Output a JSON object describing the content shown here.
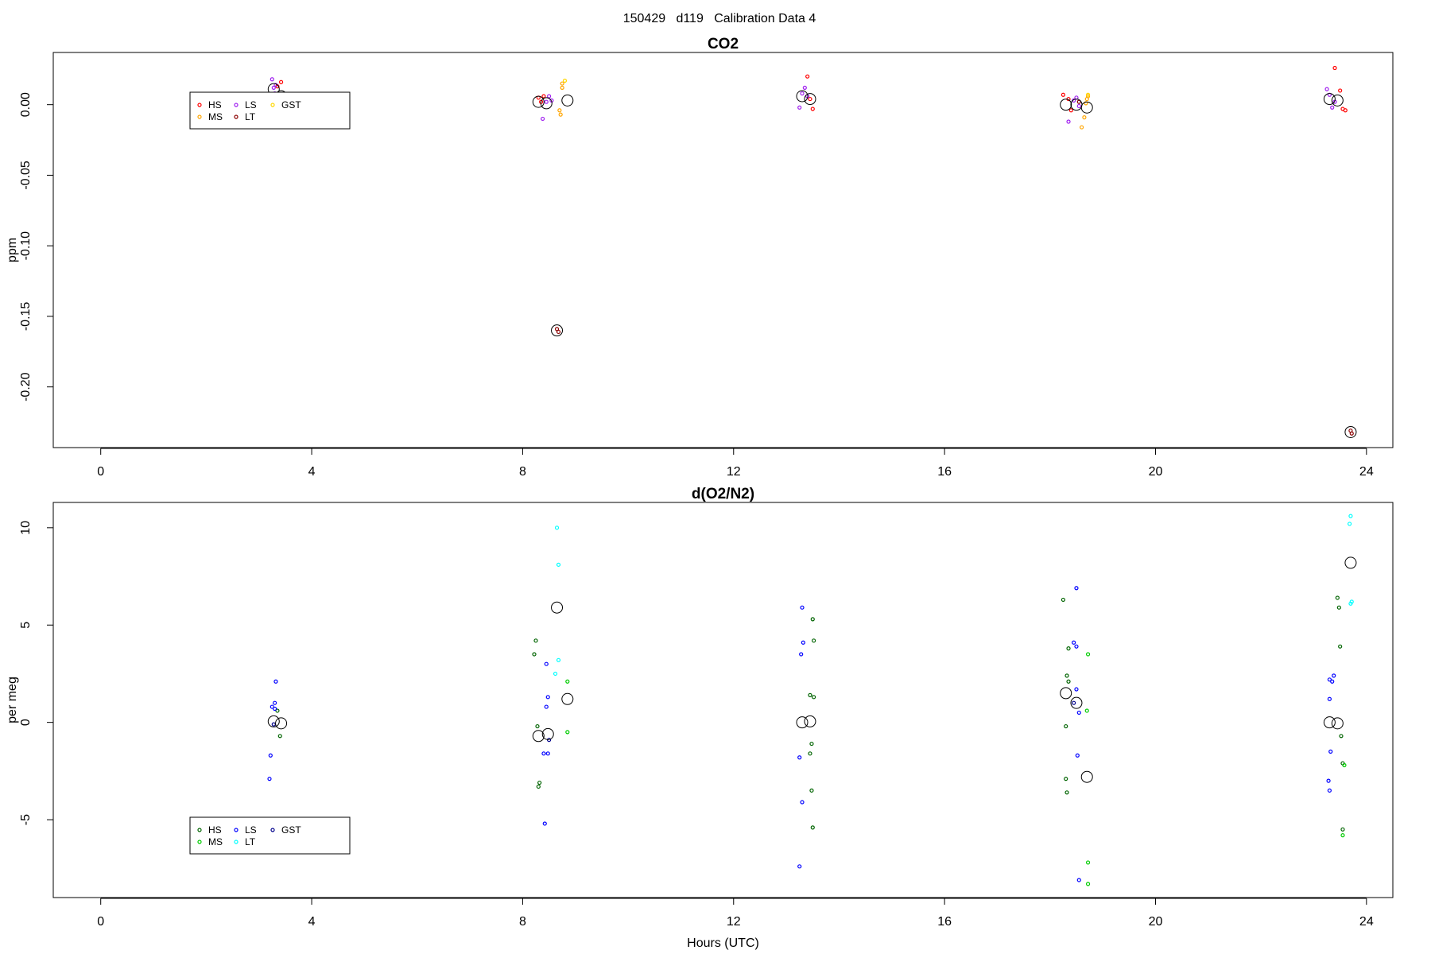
{
  "figure_title": "150429   d119   Calibration Data 4",
  "chart_data": [
    {
      "type": "scatter",
      "title": "CO2",
      "xlabel": "",
      "ylabel": "ppm",
      "xlim": [
        -0.9,
        24.5
      ],
      "ylim": [
        -0.243,
        0.037
      ],
      "x_ticks": [
        0,
        4,
        8,
        12,
        16,
        20,
        24
      ],
      "y_ticks": [
        0.0,
        -0.05,
        -0.1,
        -0.15,
        -0.2
      ],
      "y_tick_labels": [
        "0.00",
        "-0.05",
        "-0.10",
        "-0.15",
        "-0.20"
      ],
      "grid": false,
      "legend": {
        "placement": "top-left",
        "items": [
          {
            "label": "HS",
            "color": "#ff0000"
          },
          {
            "label": "MS",
            "color": "#ffa500"
          },
          {
            "label": "LS",
            "color": "#a020f0"
          },
          {
            "label": "LT",
            "color": "#8b0000"
          },
          {
            "label": "GST",
            "color": "#ffd700"
          }
        ]
      },
      "series": [
        {
          "name": "HS",
          "color": "#ff0000",
          "points": [
            [
              3.35,
              0.013
            ],
            [
              3.42,
              0.016
            ],
            [
              8.3,
              0.005
            ],
            [
              8.35,
              0.002
            ],
            [
              8.4,
              0.006
            ],
            [
              13.4,
              0.02
            ],
            [
              13.45,
              0.004
            ],
            [
              13.5,
              -0.003
            ],
            [
              18.25,
              0.007
            ],
            [
              18.35,
              0.004
            ],
            [
              18.4,
              -0.004
            ],
            [
              23.4,
              0.026
            ],
            [
              23.5,
              0.01
            ],
            [
              23.55,
              -0.003
            ],
            [
              23.6,
              -0.004
            ]
          ]
        },
        {
          "name": "MS",
          "color": "#ffa500",
          "points": [
            [
              8.75,
              0.015
            ],
            [
              8.75,
              0.012
            ],
            [
              8.7,
              -0.004
            ],
            [
              8.72,
              -0.007
            ],
            [
              18.6,
              -0.016
            ],
            [
              18.65,
              -0.009
            ],
            [
              18.7,
              0.004
            ],
            [
              18.72,
              0.006
            ],
            [
              18.68,
              0.001
            ]
          ]
        },
        {
          "name": "LS",
          "color": "#a020f0",
          "points": [
            [
              3.25,
              0.018
            ],
            [
              3.28,
              0.012
            ],
            [
              3.3,
              0.008
            ],
            [
              3.32,
              0.014
            ],
            [
              8.38,
              -0.01
            ],
            [
              8.45,
              0.002
            ],
            [
              8.5,
              0.006
            ],
            [
              8.55,
              0.003
            ],
            [
              13.25,
              -0.002
            ],
            [
              13.3,
              0.008
            ],
            [
              13.35,
              0.012
            ],
            [
              13.4,
              0.006
            ],
            [
              18.35,
              -0.012
            ],
            [
              18.45,
              0.003
            ],
            [
              18.5,
              0.005
            ],
            [
              18.55,
              -0.001
            ],
            [
              23.25,
              0.011
            ],
            [
              23.3,
              0.007
            ],
            [
              23.35,
              -0.002
            ],
            [
              23.4,
              0.002
            ]
          ]
        },
        {
          "name": "LT",
          "color": "#8b0000",
          "points": [
            [
              8.65,
              -0.159
            ],
            [
              8.68,
              -0.161
            ],
            [
              18.55,
              0.002
            ],
            [
              23.7,
              -0.231
            ],
            [
              23.72,
              -0.233
            ]
          ]
        },
        {
          "name": "GST",
          "color": "#ffd700",
          "points": [
            [
              8.8,
              0.017
            ],
            [
              18.72,
              0.007
            ]
          ]
        },
        {
          "name": "",
          "color": "#000000",
          "marker": "open-circle-large",
          "points": [
            [
              3.28,
              0.011
            ],
            [
              3.42,
              0.006
            ],
            [
              8.3,
              0.002
            ],
            [
              8.45,
              0.001
            ],
            [
              8.65,
              -0.16
            ],
            [
              8.85,
              0.003
            ],
            [
              13.3,
              0.006
            ],
            [
              13.45,
              0.004
            ],
            [
              18.3,
              0.0
            ],
            [
              18.5,
              0.0
            ],
            [
              18.7,
              -0.002
            ],
            [
              23.3,
              0.004
            ],
            [
              23.45,
              0.003
            ],
            [
              23.7,
              -0.232
            ]
          ]
        }
      ]
    },
    {
      "type": "scatter",
      "title": "d(O2/N2)",
      "xlabel": "Hours (UTC)",
      "ylabel": "per meg",
      "xlim": [
        -0.9,
        24.5
      ],
      "ylim": [
        -9.0,
        11.3
      ],
      "x_ticks": [
        0,
        4,
        8,
        12,
        16,
        20,
        24
      ],
      "y_ticks": [
        10,
        5,
        0,
        -5
      ],
      "y_tick_labels": [
        "10",
        "5",
        "0",
        "-5"
      ],
      "grid": false,
      "legend": {
        "placement": "bottom-left",
        "items": [
          {
            "label": "HS",
            "color": "#006400"
          },
          {
            "label": "MS",
            "color": "#00cc00"
          },
          {
            "label": "LS",
            "color": "#0000ff"
          },
          {
            "label": "LT",
            "color": "#00ffff"
          },
          {
            "label": "GST",
            "color": "#00008b"
          }
        ]
      },
      "series": [
        {
          "name": "HS",
          "color": "#006400",
          "points": [
            [
              3.35,
              0.6
            ],
            [
              3.4,
              -0.7
            ],
            [
              8.25,
              4.2
            ],
            [
              8.22,
              3.5
            ],
            [
              8.28,
              -0.2
            ],
            [
              8.3,
              -3.3
            ],
            [
              8.32,
              -3.1
            ],
            [
              13.5,
              5.3
            ],
            [
              13.52,
              4.2
            ],
            [
              13.45,
              1.4
            ],
            [
              13.52,
              1.3
            ],
            [
              13.48,
              -1.1
            ],
            [
              13.45,
              -1.6
            ],
            [
              13.48,
              -3.5
            ],
            [
              13.5,
              -5.4
            ],
            [
              18.25,
              6.3
            ],
            [
              18.35,
              3.8
            ],
            [
              18.32,
              2.4
            ],
            [
              18.35,
              2.1
            ],
            [
              18.3,
              -0.2
            ],
            [
              18.3,
              -2.9
            ],
            [
              18.32,
              -3.6
            ],
            [
              23.45,
              6.4
            ],
            [
              23.48,
              5.9
            ],
            [
              23.5,
              3.9
            ],
            [
              23.52,
              -0.7
            ],
            [
              23.55,
              -2.1
            ],
            [
              23.55,
              -5.5
            ]
          ]
        },
        {
          "name": "MS",
          "color": "#00cc00",
          "points": [
            [
              8.85,
              2.1
            ],
            [
              8.85,
              -0.5
            ],
            [
              18.72,
              3.5
            ],
            [
              18.7,
              0.6
            ],
            [
              18.72,
              -7.2
            ],
            [
              18.72,
              -8.3
            ],
            [
              23.55,
              -5.8
            ],
            [
              23.58,
              -2.2
            ]
          ]
        },
        {
          "name": "LS",
          "color": "#0000ff",
          "points": [
            [
              3.2,
              -2.9
            ],
            [
              3.22,
              -1.7
            ],
            [
              3.25,
              0.8
            ],
            [
              3.3,
              1.0
            ],
            [
              3.3,
              0.7
            ],
            [
              3.32,
              2.1
            ],
            [
              8.45,
              3.0
            ],
            [
              8.48,
              1.3
            ],
            [
              8.45,
              0.8
            ],
            [
              8.4,
              -1.6
            ],
            [
              8.48,
              -1.6
            ],
            [
              8.42,
              -5.2
            ],
            [
              13.3,
              5.9
            ],
            [
              13.32,
              4.1
            ],
            [
              13.28,
              3.5
            ],
            [
              13.25,
              -1.8
            ],
            [
              13.3,
              -4.1
            ],
            [
              13.25,
              -7.4
            ],
            [
              18.5,
              6.9
            ],
            [
              18.45,
              4.1
            ],
            [
              18.5,
              3.9
            ],
            [
              18.5,
              1.7
            ],
            [
              18.55,
              0.5
            ],
            [
              18.52,
              -1.7
            ],
            [
              18.55,
              -8.1
            ],
            [
              23.3,
              2.2
            ],
            [
              23.35,
              2.1
            ],
            [
              23.38,
              2.4
            ],
            [
              23.3,
              1.2
            ],
            [
              23.32,
              -1.5
            ],
            [
              23.28,
              -3.0
            ],
            [
              23.3,
              -3.5
            ]
          ]
        },
        {
          "name": "LT",
          "color": "#00ffff",
          "points": [
            [
              8.65,
              10.0
            ],
            [
              8.68,
              8.1
            ],
            [
              8.68,
              3.2
            ],
            [
              8.62,
              2.5
            ],
            [
              23.7,
              10.6
            ],
            [
              23.68,
              10.2
            ],
            [
              23.72,
              6.2
            ],
            [
              23.7,
              6.1
            ]
          ]
        },
        {
          "name": "GST",
          "color": "#00008b",
          "points": [
            [
              3.28,
              -0.1
            ],
            [
              8.5,
              -0.9
            ],
            [
              18.45,
              1.0
            ]
          ]
        },
        {
          "name": "",
          "color": "#000000",
          "marker": "open-circle-large",
          "points": [
            [
              3.28,
              0.05
            ],
            [
              3.42,
              -0.05
            ],
            [
              8.3,
              -0.7
            ],
            [
              8.48,
              -0.6
            ],
            [
              8.65,
              5.9
            ],
            [
              8.85,
              1.2
            ],
            [
              13.3,
              0.0
            ],
            [
              13.45,
              0.05
            ],
            [
              18.3,
              1.5
            ],
            [
              18.5,
              1.0
            ],
            [
              18.7,
              -2.8
            ],
            [
              23.3,
              0.0
            ],
            [
              23.45,
              -0.05
            ],
            [
              23.7,
              8.2
            ]
          ]
        }
      ]
    }
  ]
}
